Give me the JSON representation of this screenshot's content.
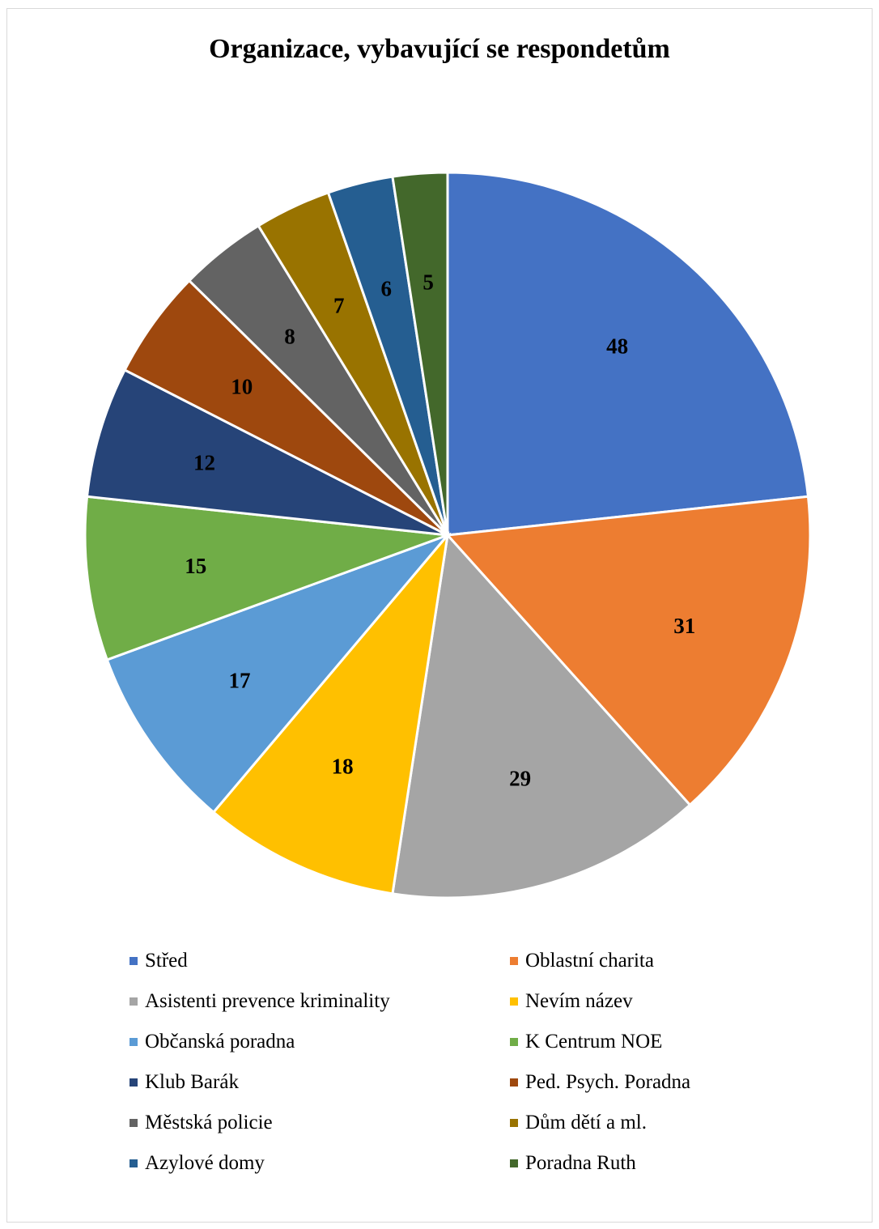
{
  "chart_data": {
    "type": "pie",
    "title": "Organizace, vybavující se respondetům",
    "legend_position": "bottom",
    "slices": [
      {
        "label": "Střed",
        "value": 48,
        "color": "#4472C4"
      },
      {
        "label": "Oblastní charita",
        "value": 31,
        "color": "#ED7D31"
      },
      {
        "label": "Asistenti prevence kriminality",
        "value": 29,
        "color": "#A5A5A5"
      },
      {
        "label": "Nevím název",
        "value": 18,
        "color": "#FFC000"
      },
      {
        "label": "Občanská poradna",
        "value": 17,
        "color": "#5B9BD5"
      },
      {
        "label": "K Centrum NOE",
        "value": 15,
        "color": "#70AD47"
      },
      {
        "label": "Klub Barák",
        "value": 12,
        "color": "#264478"
      },
      {
        "label": "Ped. Psych. Poradna",
        "value": 10,
        "color": "#9E480E"
      },
      {
        "label": "Městská policie",
        "value": 8,
        "color": "#636363"
      },
      {
        "label": "Dům dětí a ml.",
        "value": 7,
        "color": "#997300"
      },
      {
        "label": "Azylové domy",
        "value": 6,
        "color": "#255E91"
      },
      {
        "label": "Poradna Ruth",
        "value": 5,
        "color": "#43682B"
      }
    ]
  }
}
